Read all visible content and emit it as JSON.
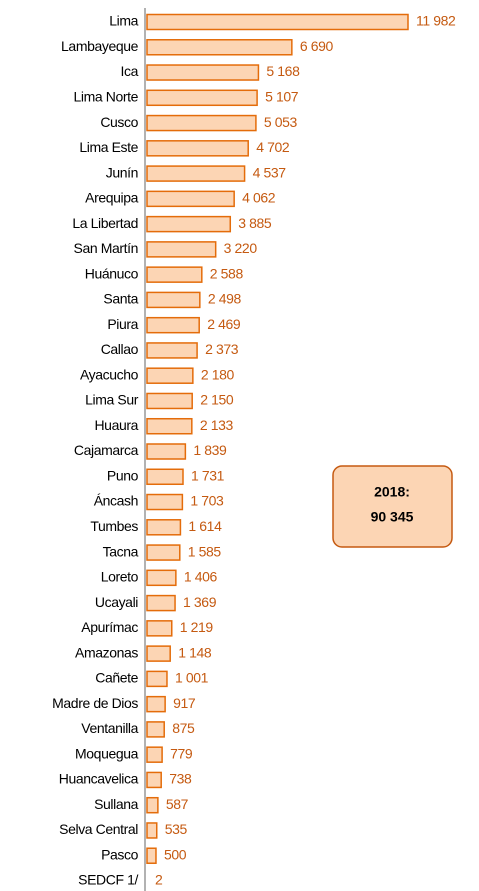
{
  "chart_data": {
    "type": "bar",
    "orientation": "horizontal",
    "categories": [
      "Lima",
      "Lambayeque",
      "Ica",
      "Lima Norte",
      "Cusco",
      "Lima Este",
      "Junín",
      "Arequipa",
      "La Libertad",
      "San Martín",
      "Huánuco",
      "Santa",
      "Piura",
      "Callao",
      "Ayacucho",
      "Lima Sur",
      "Huaura",
      "Cajamarca",
      "Puno",
      "Áncash",
      "Tumbes",
      "Tacna",
      "Loreto",
      "Ucayali",
      "Apurímac",
      "Amazonas",
      "Cañete",
      "Madre de Dios",
      "Ventanilla",
      "Moquegua",
      "Huancavelica",
      "Sullana",
      "Selva Central",
      "Pasco",
      "SEDCF 1/"
    ],
    "values": [
      11982,
      6690,
      5168,
      5107,
      5053,
      4702,
      4537,
      4062,
      3885,
      3220,
      2588,
      2498,
      2469,
      2373,
      2180,
      2150,
      2133,
      1839,
      1731,
      1703,
      1614,
      1585,
      1406,
      1369,
      1219,
      1148,
      1001,
      917,
      875,
      779,
      738,
      587,
      535,
      500,
      2
    ],
    "value_labels": [
      "11 982",
      "6 690",
      "5 168",
      "5 107",
      "5 053",
      "4 702",
      "4 537",
      "4 062",
      "3 885",
      "3 220",
      "2 588",
      "2 498",
      "2 469",
      "2 373",
      "2 180",
      "2 150",
      "2 133",
      "1 839",
      "1 731",
      "1 703",
      "1 614",
      "1 585",
      "1 406",
      "1 369",
      "1 219",
      "1 148",
      "1 001",
      "917",
      "875",
      "779",
      "738",
      "587",
      "535",
      "500",
      "2"
    ],
    "color": "#fcd5b4",
    "edge_color": "#e46c0a",
    "annotation": [
      "2018:",
      "90 345"
    ]
  }
}
